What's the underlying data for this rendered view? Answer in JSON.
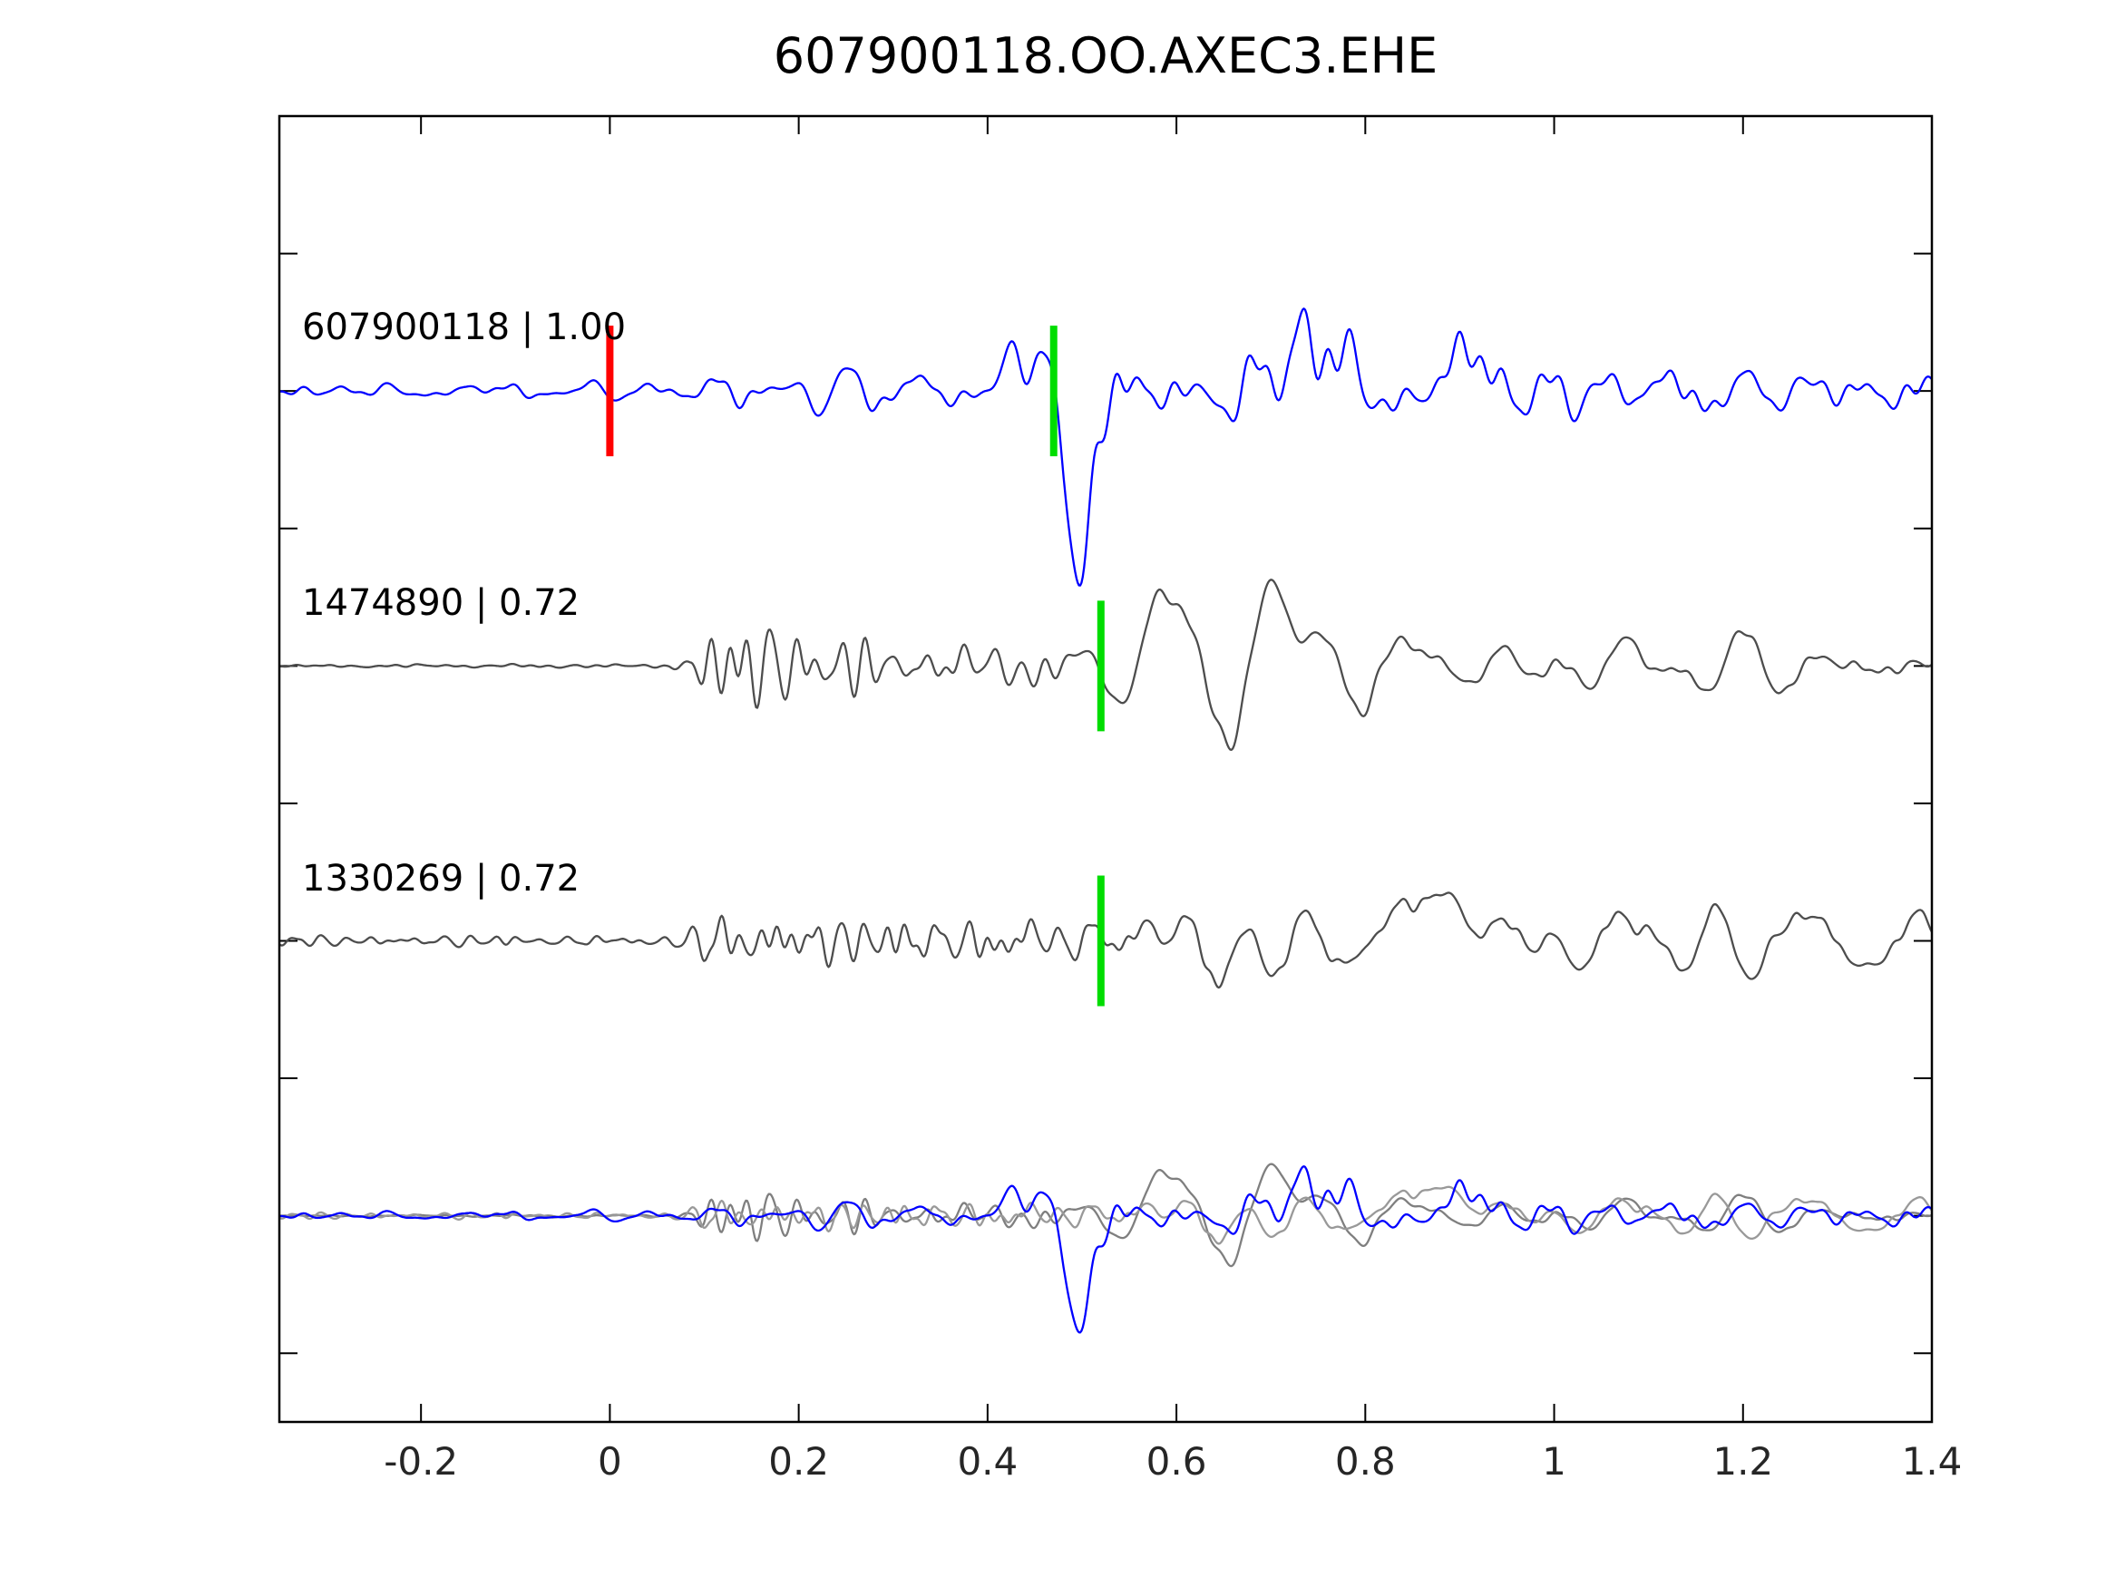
{
  "title": "607900118.OO.AXEC3.EHE",
  "chart_data": {
    "type": "line",
    "title": "607900118.OO.AXEC3.EHE",
    "xlabel": "",
    "ylabel": "",
    "xlim": [
      -0.35,
      1.4
    ],
    "ylim": [
      -0.75,
      4.0
    ],
    "x_ticks": [
      -0.2,
      0,
      0.2,
      0.4,
      0.6,
      0.8,
      1,
      1.2,
      1.4
    ],
    "x_tick_labels": [
      "-0.2",
      "0",
      "0.2",
      "0.4",
      "0.6",
      "0.8",
      "1",
      "1.2",
      "1.4"
    ],
    "y_tick_step": 0.5,
    "grid": false,
    "legend_position": "none",
    "colors": {
      "reference_trace": "#0000ff",
      "match_trace": "#4d4d4d",
      "overlay_gray_1": "#7f7f7f",
      "overlay_gray_2": "#999999",
      "origin_marker": "#ff0000",
      "pick_marker": "#00dd00",
      "axis": "#000000",
      "tick_label": "#262626"
    },
    "traces": [
      {
        "label": "607900118 | 1.00",
        "event_id": "607900118",
        "correlation": "1.00",
        "color": "#0000ff",
        "row_value": 3,
        "markers": [
          {
            "x": 0.0,
            "color": "#ff0000",
            "name": "origin-marker"
          },
          {
            "x": 0.47,
            "color": "#00dd00",
            "name": "pick-marker"
          }
        ],
        "synth": {
          "seed": 11,
          "bands": [
            {
              "envelope": [
                [
                  -0.35,
                  8
                ],
                [
                  0.05,
                  9
                ],
                [
                  0.1,
                  16
                ],
                [
                  0.14,
                  22
                ],
                [
                  0.18,
                  18
                ],
                [
                  0.24,
                  20
                ],
                [
                  0.3,
                  17
                ],
                [
                  0.38,
                  22
                ],
                [
                  0.42,
                  40
                ],
                [
                  0.47,
                  55
                ],
                [
                  0.52,
                  60
                ],
                [
                  0.6,
                  50
                ],
                [
                  0.68,
                  52
                ],
                [
                  0.75,
                  68
                ],
                [
                  0.82,
                  60
                ],
                [
                  0.9,
                  55
                ],
                [
                  1.0,
                  38
                ],
                [
                  1.1,
                  30
                ],
                [
                  1.25,
                  28
                ],
                [
                  1.4,
                  26
                ]
              ],
              "freqs": [
                [
                  14,
                  1
                ],
                [
                  24,
                  0.8
                ],
                [
                  38,
                  0.5
                ],
                [
                  7,
                  0.45
                ]
              ]
            }
          ],
          "pulses": [
            [
              0.497,
              -125,
              0.02
            ],
            [
              0.43,
              55,
              0.012
            ],
            [
              0.765,
              75,
              0.028
            ],
            [
              0.835,
              -70,
              0.022
            ],
            [
              0.88,
              60,
              0.025
            ]
          ]
        }
      },
      {
        "label": "1474890 | 0.72",
        "event_id": "1474890",
        "correlation": "0.72",
        "color": "#4d4d4d",
        "row_value": 2,
        "markers": [
          {
            "x": 0.52,
            "color": "#00dd00",
            "name": "pick-marker"
          }
        ],
        "synth": {
          "seed": 23,
          "bands": [
            {
              "envelope": [
                [
                  -0.35,
                  1.2
                ],
                [
                  0.06,
                  1.5
                ],
                [
                  0.085,
                  8
                ],
                [
                  0.1,
                  42
                ],
                [
                  0.13,
                  48
                ],
                [
                  0.17,
                  38
                ],
                [
                  0.22,
                  34
                ],
                [
                  0.28,
                  30
                ],
                [
                  0.33,
                  26
                ],
                [
                  0.38,
                  22
                ],
                [
                  0.44,
                  18
                ],
                [
                  0.5,
                  12
                ],
                [
                  0.6,
                  9
                ],
                [
                  0.8,
                  6
                ],
                [
                  1.0,
                  5
                ],
                [
                  1.4,
                  4
                ]
              ],
              "freqs": [
                [
                  42,
                  1
                ],
                [
                  58,
                  0.5
                ],
                [
                  30,
                  0.6
                ]
              ]
            },
            {
              "envelope": [
                [
                  -0.35,
                  0.3
                ],
                [
                  0.3,
                  2
                ],
                [
                  0.4,
                  8
                ],
                [
                  0.48,
                  18
                ],
                [
                  0.54,
                  40
                ],
                [
                  0.6,
                  70
                ],
                [
                  0.68,
                  60
                ],
                [
                  0.78,
                  52
                ],
                [
                  0.9,
                  48
                ],
                [
                  1.05,
                  42
                ],
                [
                  1.2,
                  40
                ],
                [
                  1.4,
                  42
                ]
              ],
              "freqs": [
                [
                  8.5,
                  1
                ],
                [
                  13,
                  0.6
                ],
                [
                  5,
                  0.35
                ]
              ]
            }
          ],
          "pulses": [
            [
              0.585,
              100,
              0.027
            ],
            [
              0.545,
              -55,
              0.018
            ],
            [
              0.64,
              -80,
              0.025
            ],
            [
              0.7,
              60,
              0.03
            ]
          ]
        }
      },
      {
        "label": "1330269 | 0.72",
        "event_id": "1330269",
        "correlation": "0.72",
        "color": "#4d4d4d",
        "row_value": 1,
        "markers": [
          {
            "x": 0.52,
            "color": "#00dd00",
            "name": "pick-marker"
          }
        ],
        "synth": {
          "seed": 37,
          "bands": [
            {
              "envelope": [
                [
                  -0.35,
                  5
                ],
                [
                  0.05,
                  5
                ],
                [
                  0.09,
                  10
                ],
                [
                  0.11,
                  35
                ],
                [
                  0.15,
                  40
                ],
                [
                  0.2,
                  32
                ],
                [
                  0.27,
                  30
                ],
                [
                  0.34,
                  28
                ],
                [
                  0.4,
                  26
                ],
                [
                  0.46,
                  22
                ],
                [
                  0.52,
                  14
                ],
                [
                  0.62,
                  10
                ],
                [
                  0.8,
                  7
                ],
                [
                  1.4,
                  5
                ]
              ],
              "freqs": [
                [
                  38,
                  1
                ],
                [
                  55,
                  0.45
                ],
                [
                  26,
                  0.6
                ]
              ]
            },
            {
              "envelope": [
                [
                  -0.35,
                  0.3
                ],
                [
                  0.35,
                  3
                ],
                [
                  0.45,
                  12
                ],
                [
                  0.52,
                  30
                ],
                [
                  0.58,
                  65
                ],
                [
                  0.66,
                  55
                ],
                [
                  0.75,
                  45
                ],
                [
                  0.88,
                  50
                ],
                [
                  1.0,
                  40
                ],
                [
                  1.15,
                  35
                ],
                [
                  1.3,
                  38
                ],
                [
                  1.4,
                  35
                ]
              ],
              "freqs": [
                [
                  9,
                  1
                ],
                [
                  14,
                  0.55
                ],
                [
                  5.5,
                  0.3
                ]
              ]
            }
          ],
          "pulses": [
            [
              0.585,
              95,
              0.025
            ],
            [
              0.55,
              -45,
              0.016
            ],
            [
              0.63,
              -75,
              0.024
            ],
            [
              0.88,
              55,
              0.028
            ]
          ]
        }
      },
      {
        "label": "",
        "event_id": "1474890",
        "color": "#7f7f7f",
        "row_value": 0,
        "markers": [],
        "synth_ref": 1,
        "scale": 0.6
      },
      {
        "label": "",
        "event_id": "1330269",
        "color": "#999999",
        "row_value": 0,
        "markers": [],
        "synth_ref": 2,
        "scale": 0.6
      },
      {
        "label": "",
        "event_id": "607900118",
        "color": "#0000ff",
        "row_value": 0,
        "markers": [],
        "synth_ref": 0,
        "scale": 0.6
      }
    ]
  }
}
